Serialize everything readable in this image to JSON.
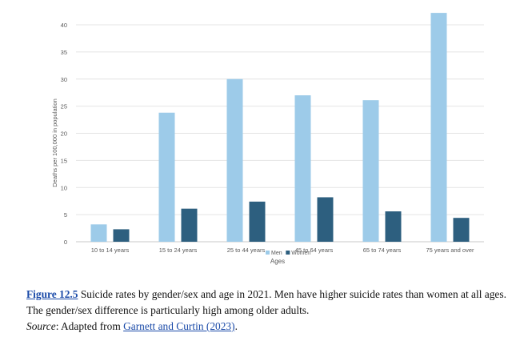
{
  "chart_data": {
    "type": "bar",
    "categories": [
      "10 to 14 years",
      "15 to 24 years",
      "25 to 44 years",
      "45 to 64 years",
      "65 to 74 years",
      "75 years and over"
    ],
    "series": [
      {
        "name": "Men",
        "values": [
          3.2,
          23.8,
          30.0,
          27.0,
          26.1,
          42.2
        ],
        "color": "#9dcbe9"
      },
      {
        "name": "Women",
        "values": [
          2.3,
          6.1,
          7.4,
          8.2,
          5.6,
          4.4
        ],
        "color": "#2d5f7f"
      }
    ],
    "xlabel": "Ages",
    "ylabel": "Deaths per 100,000 in population",
    "ylim": [
      0,
      40
    ],
    "yticks": [
      0,
      5,
      10,
      15,
      20,
      25,
      30,
      35,
      40
    ],
    "grid": true,
    "legend_position": "bottom"
  },
  "caption": {
    "figure_label": "Figure 12.5",
    "text": " Suicide rates by gender/sex and age in 2021. Men have higher suicide rates than women at all ages. The gender/sex difference is particularly high among older adults.",
    "source_label": "Source",
    "source_prefix": ": Adapted from ",
    "source_link": "Garnett and Curtin (2023)",
    "source_suffix": "."
  }
}
